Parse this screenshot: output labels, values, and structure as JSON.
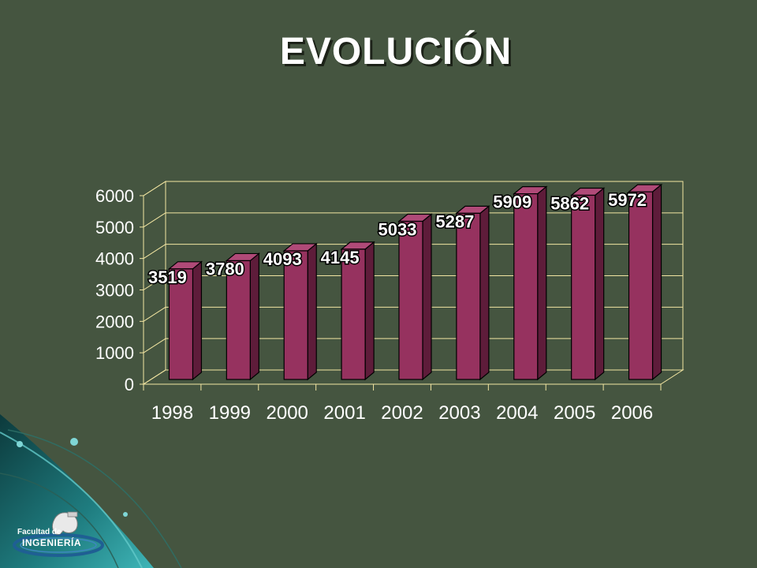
{
  "slide": {
    "title": "EVOLUCIÓN"
  },
  "logo": {
    "line1": "Facultad de",
    "line2": "INGENIERÍA"
  },
  "colors": {
    "background": "#455540",
    "bar_front": "#96325f",
    "bar_side": "#5e1c3a",
    "bar_top": "#b04a78",
    "plot_frame": "#f3e6a2"
  },
  "chart_data": {
    "type": "bar",
    "title": "",
    "xlabel": "",
    "ylabel": "",
    "categories": [
      "1998",
      "1999",
      "2000",
      "2001",
      "2002",
      "2003",
      "2004",
      "2005",
      "2006"
    ],
    "values": [
      3519,
      3780,
      4093,
      4145,
      5033,
      5287,
      5909,
      5862,
      5972
    ],
    "ylim": [
      0,
      6000
    ],
    "yticks": [
      "0",
      "1000",
      "2000",
      "3000",
      "4000",
      "5000",
      "6000"
    ],
    "grid": true,
    "legend": "none",
    "three_d": true
  }
}
